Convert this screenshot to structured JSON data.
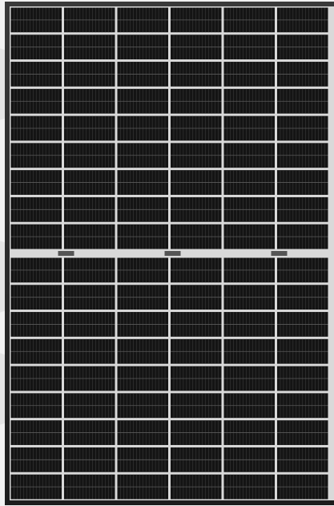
{
  "image": {
    "subject": "solar-panel",
    "colors": {
      "background": "#f2f2f2",
      "frame": "#2a2a2a",
      "cell": "#141414",
      "cell_line": "#3a3a3a",
      "grid_gap": "#d9d9d9",
      "junction": "#555555"
    },
    "layout": {
      "columns": 6,
      "rows_top": 9,
      "rows_bottom": 9,
      "split_panel": true
    }
  }
}
